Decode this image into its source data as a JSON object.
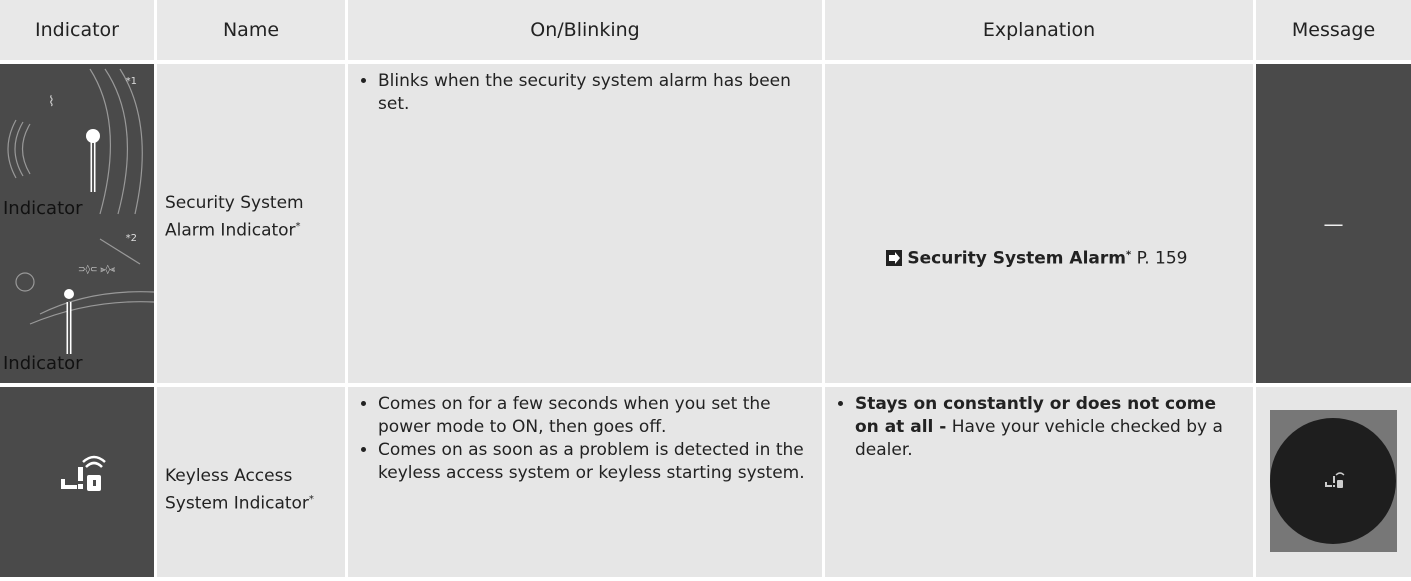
{
  "table": {
    "headers": [
      "Indicator",
      "Name",
      "On/Blinking",
      "Explanation",
      "Message"
    ],
    "rows": [
      {
        "indicator": {
          "notes": [
            "*1",
            "*2"
          ],
          "labels": [
            "Indicator",
            "Indicator"
          ]
        },
        "name": "Security System Alarm Indicator",
        "name_mark": "*",
        "on_blinking": [
          "Blinks when the security system alarm has been set."
        ],
        "explanation": {
          "link": "Security System Alarm",
          "mark": "*",
          "page": "P. 159"
        },
        "message": "—"
      },
      {
        "name": "Keyless Access System Indicator",
        "name_mark": "*",
        "on_blinking": [
          "Comes on for a few seconds when you set the power mode to ON, then goes off.",
          "Comes on as soon as a problem is detected in the keyless access system or keyless starting system."
        ],
        "explanation": {
          "bold": "Stays on constantly or does not come on at all -",
          "text": "Have your vehicle checked by a dealer."
        }
      }
    ]
  }
}
